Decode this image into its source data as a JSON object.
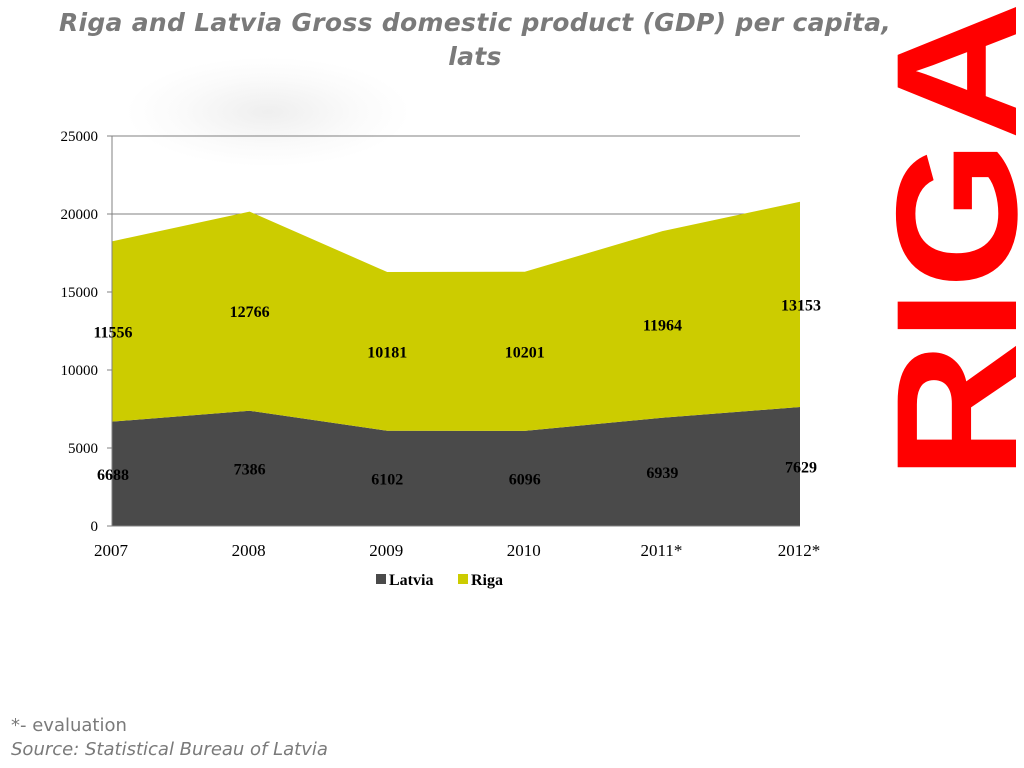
{
  "title": {
    "line1": "Riga and Latvia Gross domestic product (GDP) per capita,",
    "line2": "lats"
  },
  "brand_text": "RIGA",
  "colors": {
    "latvia": "#4a4a4a",
    "riga": "#cccc00",
    "brand": "#ff0000",
    "title": "#7a7a7a",
    "grid": "#808080"
  },
  "chart_data": {
    "type": "area",
    "stacked": true,
    "categories": [
      "2007",
      "2008",
      "2009",
      "2010",
      "2011*",
      "2012*"
    ],
    "series": [
      {
        "name": "Latvia",
        "values": [
          6688,
          7386,
          6102,
          6096,
          6939,
          7629
        ]
      },
      {
        "name": "Riga",
        "values": [
          11556,
          12766,
          10181,
          10201,
          11964,
          13153
        ]
      }
    ],
    "ylim": [
      0,
      25000
    ],
    "yticks": [
      0,
      5000,
      10000,
      15000,
      20000,
      25000
    ],
    "grid": true,
    "legend_position": "bottom"
  },
  "footnotes": {
    "evaluation": "*- evaluation",
    "source": "Source: Statistical Bureau of Latvia"
  }
}
